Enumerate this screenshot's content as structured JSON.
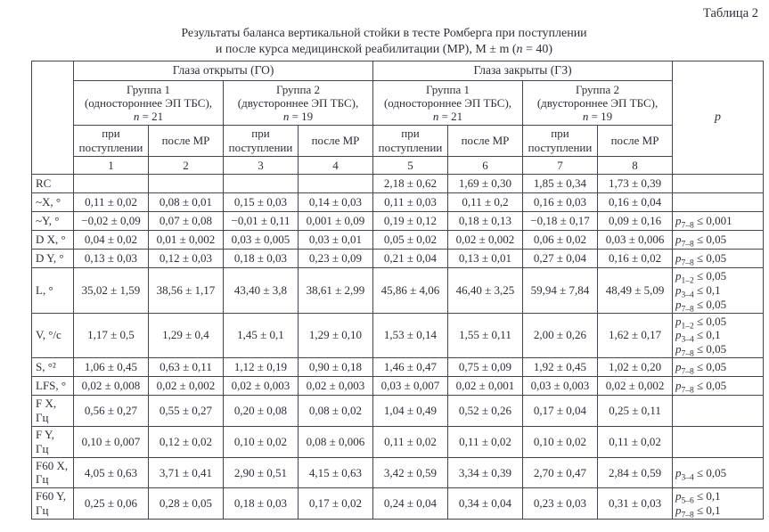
{
  "theme": {
    "text_color": "#2e2e38",
    "border_color": "#45454e",
    "background_color": "#ffffff"
  },
  "table_label": "Таблица 2",
  "caption": {
    "line1": "Результаты баланса вертикальной стойки в тесте Ромберга при поступлении",
    "line2_pre": "и после курса медицинской реабилитации (МР), M ± m (",
    "line2_n": "n",
    "line2_post": " = 40)"
  },
  "table": {
    "group_headers": [
      "Глаза открыты (ГО)",
      "Глаза закрыты (ГЗ)"
    ],
    "subgroups": [
      {
        "name": "Группа 1",
        "desc": "(одностороннее ЭП ТБС),",
        "n_symbol": "n",
        "n_eq": " = 21"
      },
      {
        "name": "Группа 2",
        "desc": "(двустороннее ЭП ТБС),",
        "n_symbol": "n",
        "n_eq": " = 19"
      },
      {
        "name": "Группа 1",
        "desc": "(одностороннее ЭП ТБС),",
        "n_symbol": "n",
        "n_eq": " = 21"
      },
      {
        "name": "Группа 2",
        "desc": "(двустороннее ЭП ТБС),",
        "n_symbol": "n",
        "n_eq": " = 19"
      }
    ],
    "visits": [
      "при поступлении",
      "после МР"
    ],
    "col_numbers": [
      "1",
      "2",
      "3",
      "4",
      "5",
      "6",
      "7",
      "8"
    ],
    "p_header": "p",
    "p_symbol": "p",
    "rows": [
      {
        "label_lines": [
          "RC"
        ],
        "values": [
          "",
          "",
          "",
          "",
          "2,18 ± 0,62",
          "1,69 ± 0,30",
          "1,85 ± 0,34",
          "1,73 ± 0,39"
        ],
        "p": []
      },
      {
        "label_lines": [
          "~X, °"
        ],
        "values": [
          "0,11 ± 0,02",
          "0,08 ± 0,01",
          "0,15 ± 0,03",
          "0,14 ± 0,03",
          "0,11 ± 0,03",
          "0,11 ± 0,2",
          "0,16 ± 0,03",
          "0,16 ± 0,04"
        ],
        "p": []
      },
      {
        "label_lines": [
          "~Y, °"
        ],
        "values": [
          "−0,02 ± 0,09",
          "0,07 ± 0,08",
          "−0,01 ± 0,11",
          "0,001 ± 0,09",
          "0,19 ± 0,12",
          "0,18 ± 0,13",
          "−0,18 ± 0,17",
          "0,09 ± 0,16"
        ],
        "p": [
          [
            "7–8",
            "≤ 0,001"
          ]
        ]
      },
      {
        "label_lines": [
          "D X, °"
        ],
        "values": [
          "0,04 ± 0,02",
          "0,01 ± 0,002",
          "0,03 ± 0,005",
          "0,03 ± 0,01",
          "0,05 ± 0,02",
          "0,02 ± 0,002",
          "0,06 ± 0,02",
          "0,03 ± 0,006"
        ],
        "p": [
          [
            "7–8",
            "≤ 0,05"
          ]
        ]
      },
      {
        "label_lines": [
          "D Y, °"
        ],
        "values": [
          "0,13 ± 0,03",
          "0,12 ± 0,03",
          "0,18 ± 0,03",
          "0,23 ± 0,09",
          "0,21 ± 0,04",
          "0,13 ± 0,01",
          "0,27 ± 0,04",
          "0,16 ± 0,02"
        ],
        "p": [
          [
            "7–8",
            "≤ 0,05"
          ]
        ]
      },
      {
        "label_lines": [
          "L, °"
        ],
        "values": [
          "35,02 ± 1,59",
          "38,56 ± 1,17",
          "43,40 ± 3,8",
          "38,61 ± 2,99",
          "45,86 ± 4,06",
          "46,40 ± 3,25",
          "59,94 ± 7,84",
          "48,49 ± 5,09"
        ],
        "p": [
          [
            "1–2",
            "≤ 0,05"
          ],
          [
            "3–4",
            "≤ 0,1"
          ],
          [
            "7–8",
            "≤ 0,05"
          ]
        ]
      },
      {
        "label_lines": [
          "V, °/с"
        ],
        "values": [
          "1,17 ± 0,5",
          "1,29 ± 0,4",
          "1,45 ± 0,1",
          "1,29 ± 0,10",
          "1,53 ± 0,14",
          "1,55 ± 0,11",
          "2,00 ± 0,26",
          "1,62 ± 0,17"
        ],
        "p": [
          [
            "1–2",
            "≤ 0,05"
          ],
          [
            "3–4",
            "≤ 0,1"
          ],
          [
            "7–8",
            "≤ 0,05"
          ]
        ]
      },
      {
        "label_lines": [
          "S, °²"
        ],
        "values": [
          "1,06 ± 0,45",
          "0,63 ± 0,11",
          "1,12 ± 0,19",
          "0,90 ± 0,18",
          "1,46 ± 0,47",
          "0,75 ± 0,09",
          "1,92 ± 0,45",
          "1,02 ± 0,20"
        ],
        "p": [
          [
            "7–8",
            "≤ 0,05"
          ]
        ]
      },
      {
        "label_lines": [
          "LFS, °"
        ],
        "values": [
          "0,02 ± 0,008",
          "0,02 ± 0,002",
          "0,02 ± 0,003",
          "0,02 ± 0,003",
          "0,03 ± 0,007",
          "0,02 ± 0,001",
          "0,03 ± 0,003",
          "0,02 ± 0,002"
        ],
        "p": [
          [
            "7–8",
            "≤ 0,05"
          ]
        ]
      },
      {
        "label_lines": [
          "F X,",
          "Гц"
        ],
        "values": [
          "0,56 ± 0,27",
          "0,55 ± 0,27",
          "0,20 ± 0,08",
          "0,08 ± 0,02",
          "1,04 ± 0,49",
          "0,52 ± 0,26",
          "0,17 ± 0,04",
          "0,25 ± 0,11"
        ],
        "p": []
      },
      {
        "label_lines": [
          "F Y,",
          "Гц"
        ],
        "values": [
          "0,10 ± 0,007",
          "0,12 ± 0,02",
          "0,10 ± 0,02",
          "0,08 ± 0,006",
          "0,11 ± 0,02",
          "0,11 ± 0,02",
          "0,10 ± 0,02",
          "0,11 ± 0,02"
        ],
        "p": []
      },
      {
        "label_lines": [
          "F60 X,",
          "Гц"
        ],
        "values": [
          "4,05 ± 0,63",
          "3,71 ± 0,41",
          "2,90 ± 0,51",
          "4,15 ± 0,63",
          "3,42 ± 0,59",
          "3,34 ± 0,39",
          "2,70 ± 0,47",
          "2,84 ± 0,59"
        ],
        "p": [
          [
            "3–4",
            "≤ 0,05"
          ]
        ]
      },
      {
        "label_lines": [
          "F60 Y,",
          "Гц"
        ],
        "values": [
          "0,25 ± 0,06",
          "0,28 ± 0,05",
          "0,18 ± 0,03",
          "0,17 ± 0,02",
          "0,24 ± 0,04",
          "0,34 ± 0,04",
          "0,23 ± 0,03",
          "0,31 ± 0,03"
        ],
        "p": [
          [
            "5–6",
            "≤ 0,1"
          ],
          [
            "7–8",
            "≤ 0,1"
          ]
        ]
      }
    ]
  }
}
